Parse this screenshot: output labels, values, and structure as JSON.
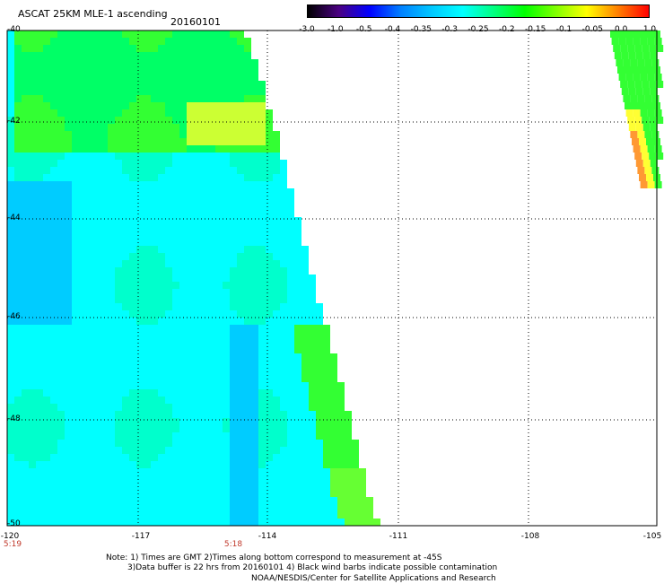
{
  "header": {
    "title": "ASCAT 25KM MLE-1 ascending",
    "date": "20160101"
  },
  "colorbar": {
    "labels": [
      "-3.0",
      "-1.0",
      "-0.5",
      "-0.4",
      "-0.35",
      "-0.3",
      "-0.25",
      "-0.2",
      "-0.15",
      "-0.1",
      "-0.05",
      "0.0",
      "1.0"
    ],
    "colors": [
      "#000000",
      "#4b0082",
      "#0000ff",
      "#0080ff",
      "#00c8ff",
      "#00ffff",
      "#00ff80",
      "#00ff00",
      "#80ff00",
      "#ffff00",
      "#ff8000",
      "#ff0000"
    ]
  },
  "map": {
    "lat_labels": [
      "-40",
      "-42",
      "-44",
      "-46",
      "-48",
      "-50"
    ],
    "lon_labels": [
      "-120",
      "-117",
      "-114",
      "-111",
      "-108",
      "-105"
    ],
    "time_labels": [
      "5:19",
      "5:18"
    ]
  },
  "footer": {
    "line1": "Note: 1) Times are GMT 2)Times along bottom correspond to measurement at -45S",
    "line2": "3)Data buffer is 22 hrs from 20160101 4) Black wind barbs indicate possible contamination",
    "line3": "NOAA/NESDIS/Center for Satellite Applications and Research"
  }
}
